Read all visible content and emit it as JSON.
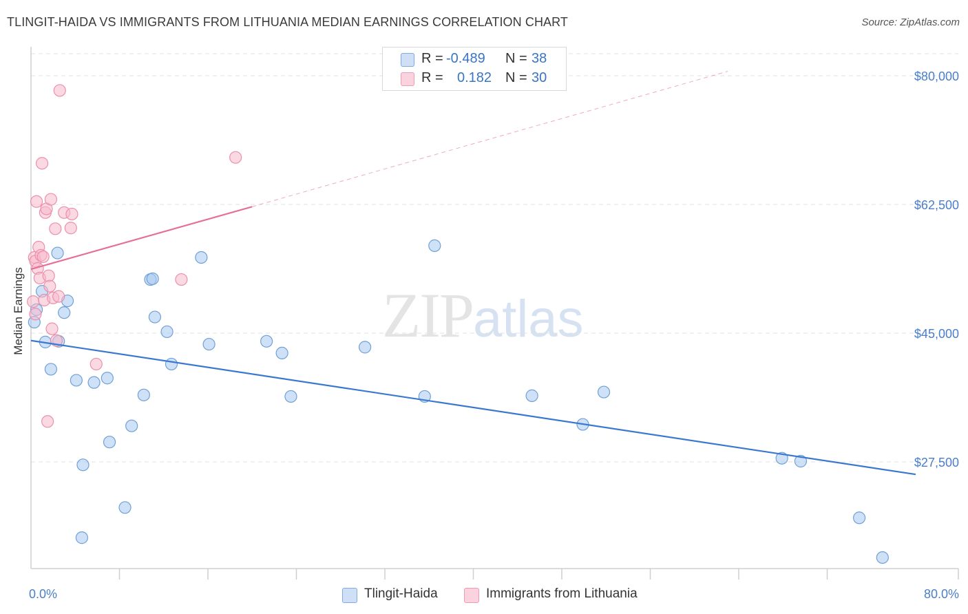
{
  "title": "TLINGIT-HAIDA VS IMMIGRANTS FROM LITHUANIA MEDIAN EARNINGS CORRELATION CHART",
  "source": "Source: ZipAtlas.com",
  "watermark": {
    "zip": "ZIP",
    "atlas": "atlas"
  },
  "legend": {
    "rows": [
      {
        "r_label": "R =",
        "r_value": "-0.489",
        "n_label": "N =",
        "n_value": "38",
        "color": "#a8c8f0"
      },
      {
        "r_label": "R =",
        "r_value": "0.182",
        "n_label": "N =",
        "n_value": "30",
        "color": "#f7b9cc"
      }
    ]
  },
  "bottom_legend": [
    {
      "label": "Tlingit-Haida",
      "color": "#a8c8f0"
    },
    {
      "label": "Immigrants from Lithuania",
      "color": "#f7b9cc"
    }
  ],
  "chart_data": {
    "type": "scatter",
    "xlabel": "",
    "ylabel": "Median Earnings",
    "xlim": [
      0,
      80
    ],
    "ylim": [
      13000,
      83000
    ],
    "x_tick_labels": [
      {
        "value": 0,
        "label": "0.0%"
      },
      {
        "value": 80,
        "label": "80.0%"
      }
    ],
    "x_minor_ticks": [
      8,
      16,
      24,
      32,
      40,
      48,
      56,
      64,
      72
    ],
    "y_ticks": [
      {
        "value": 27500,
        "label": "$27,500"
      },
      {
        "value": 45000,
        "label": "$45,000"
      },
      {
        "value": 62500,
        "label": "$62,500"
      },
      {
        "value": 80000,
        "label": "$80,000"
      }
    ],
    "grid": true,
    "series": [
      {
        "name": "Tlingit-Haida",
        "color": "#a8c8f0",
        "stroke": "#6fa0d8",
        "trend_color": "#3a78d0",
        "trend": {
          "x0": 0,
          "y0": 44000,
          "x1": 80,
          "y1": 25800,
          "dashed_x1": 80
        },
        "points": [
          [
            0.3,
            46500
          ],
          [
            0.5,
            48200
          ],
          [
            1.0,
            50700
          ],
          [
            1.3,
            43800
          ],
          [
            1.8,
            40100
          ],
          [
            2.4,
            55900
          ],
          [
            2.5,
            43900
          ],
          [
            3.0,
            47800
          ],
          [
            3.3,
            49400
          ],
          [
            4.1,
            38600
          ],
          [
            4.7,
            27100
          ],
          [
            4.6,
            17200
          ],
          [
            5.7,
            38300
          ],
          [
            6.9,
            38900
          ],
          [
            7.1,
            30200
          ],
          [
            8.5,
            21300
          ],
          [
            9.1,
            32400
          ],
          [
            10.2,
            36600
          ],
          [
            10.8,
            52300
          ],
          [
            11.0,
            52400
          ],
          [
            11.2,
            47200
          ],
          [
            12.3,
            45200
          ],
          [
            12.7,
            40800
          ],
          [
            15.4,
            55300
          ],
          [
            16.1,
            43500
          ],
          [
            21.3,
            43900
          ],
          [
            22.7,
            42300
          ],
          [
            23.5,
            36400
          ],
          [
            30.2,
            43100
          ],
          [
            35.6,
            36400
          ],
          [
            36.5,
            56900
          ],
          [
            45.3,
            36500
          ],
          [
            49.9,
            32600
          ],
          [
            51.8,
            37000
          ],
          [
            67.9,
            28000
          ],
          [
            69.6,
            27600
          ],
          [
            74.9,
            19900
          ],
          [
            77.0,
            14500
          ]
        ]
      },
      {
        "name": "Immigrants from Lithuania",
        "color": "#f7b9cc",
        "stroke": "#ec8fab",
        "trend_color": "#e56f97",
        "trend": {
          "x0": 0,
          "y0": 53700,
          "x1": 20,
          "y1": 62200,
          "dashed_x1": 63,
          "dashed_y1": 80600
        },
        "points": [
          [
            0.2,
            49300
          ],
          [
            0.3,
            55300
          ],
          [
            0.4,
            54800
          ],
          [
            0.5,
            62900
          ],
          [
            0.6,
            53800
          ],
          [
            0.7,
            56700
          ],
          [
            0.8,
            52500
          ],
          [
            0.9,
            55600
          ],
          [
            1.0,
            68100
          ],
          [
            1.1,
            55400
          ],
          [
            1.2,
            49500
          ],
          [
            1.3,
            61400
          ],
          [
            1.4,
            61900
          ],
          [
            1.5,
            33000
          ],
          [
            1.6,
            52800
          ],
          [
            1.7,
            51400
          ],
          [
            1.8,
            63200
          ],
          [
            1.9,
            45600
          ],
          [
            2.0,
            49800
          ],
          [
            2.2,
            59200
          ],
          [
            2.3,
            44000
          ],
          [
            2.5,
            50000
          ],
          [
            2.6,
            78000
          ],
          [
            3.0,
            61400
          ],
          [
            3.6,
            59300
          ],
          [
            3.7,
            61200
          ],
          [
            5.9,
            40800
          ],
          [
            13.6,
            52300
          ],
          [
            18.5,
            68900
          ],
          [
            0.4,
            47600
          ]
        ]
      }
    ]
  }
}
